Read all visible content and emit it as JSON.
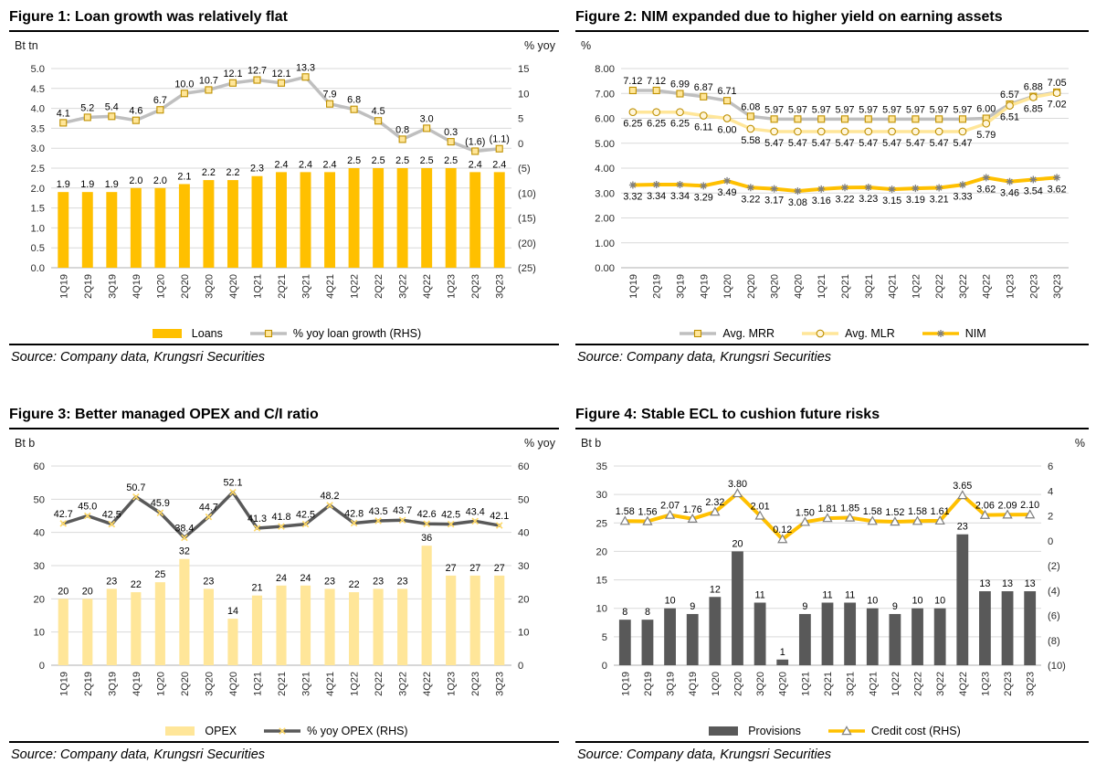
{
  "source_text": "Source: Company data, Krungsri Securities",
  "colors": {
    "gold": "#FFC000",
    "light_yellow": "#FFE699",
    "pale_yellow_fill": "#FFF6DC",
    "gray_line": "#BFBFBF",
    "dark_gray": "#595959",
    "marker_tan": "#BF9000",
    "marker_gray": "#7F7F7F",
    "grid_line": "#D9D9D9",
    "axis_line": "#BFBFBF"
  },
  "chart_data": [
    {
      "type": "bar-line",
      "title": "Figure 1: Loan growth was relatively flat",
      "grid": true,
      "legend_position": "bottom",
      "categories": [
        "1Q19",
        "2Q19",
        "3Q19",
        "4Q19",
        "1Q20",
        "2Q20",
        "3Q20",
        "4Q20",
        "1Q21",
        "2Q21",
        "3Q21",
        "4Q21",
        "1Q22",
        "2Q22",
        "3Q22",
        "4Q22",
        "1Q23",
        "2Q23",
        "3Q23"
      ],
      "left_axis": {
        "unit": "Bt tn",
        "min": 0,
        "max": 5,
        "labels": [
          "5.0",
          "4.5",
          "4.0",
          "3.5",
          "3.0",
          "2.5",
          "2.0",
          "1.5",
          "1.0",
          "0.5",
          "0.0"
        ]
      },
      "right_axis": {
        "unit": "% yoy",
        "min": -25,
        "max": 15,
        "labels": [
          "15",
          "10",
          "5",
          "0",
          "(5)",
          "(10)",
          "(15)",
          "(20)",
          "(25)"
        ]
      },
      "bars": {
        "name": "Loans",
        "axis": "left",
        "color": "#FFC000",
        "values": [
          1.9,
          1.9,
          1.9,
          2.0,
          2.0,
          2.1,
          2.2,
          2.2,
          2.3,
          2.4,
          2.4,
          2.4,
          2.5,
          2.5,
          2.5,
          2.5,
          2.5,
          2.4,
          2.4
        ],
        "labels": [
          "1.9",
          "1.9",
          "1.9",
          "2.0",
          "2.0",
          "2.1",
          "2.2",
          "2.2",
          "2.3",
          "2.4",
          "2.4",
          "2.4",
          "2.5",
          "2.5",
          "2.5",
          "2.5",
          "2.5",
          "2.4",
          "2.4"
        ]
      },
      "lines": [
        {
          "name": "% yoy loan growth (RHS)",
          "axis": "right",
          "color": "#BFBFBF",
          "marker": "square",
          "marker_fill": "#FFE699",
          "marker_stroke": "#BF9000",
          "values": [
            4.1,
            5.2,
            5.4,
            4.6,
            6.7,
            10.0,
            10.7,
            12.1,
            12.7,
            12.1,
            13.3,
            7.9,
            6.8,
            4.5,
            0.8,
            3.0,
            0.3,
            -1.6,
            -1.1
          ],
          "labels": [
            "4.1",
            "5.2",
            "5.4",
            "4.6",
            "6.7",
            "10.0",
            "10.7",
            "12.1",
            "12.7",
            "12.1",
            "13.3",
            "7.9",
            "6.8",
            "4.5",
            "0.8",
            "3.0",
            "0.3",
            "(1.6)",
            "(1.1)"
          ]
        }
      ]
    },
    {
      "type": "line",
      "title": "Figure 2: NIM expanded due to higher yield on earning assets",
      "grid": true,
      "legend_position": "bottom",
      "categories": [
        "1Q19",
        "2Q19",
        "3Q19",
        "4Q19",
        "1Q20",
        "2Q20",
        "3Q20",
        "4Q20",
        "1Q21",
        "2Q21",
        "3Q21",
        "4Q21",
        "1Q22",
        "2Q22",
        "3Q22",
        "4Q22",
        "1Q23",
        "2Q23",
        "3Q23"
      ],
      "left_axis": {
        "unit": "%",
        "min": 0,
        "max": 8,
        "labels": [
          "8.00",
          "7.00",
          "6.00",
          "5.00",
          "4.00",
          "3.00",
          "2.00",
          "1.00",
          "0.00"
        ]
      },
      "right_axis": null,
      "bars": null,
      "lines": [
        {
          "name": "Avg. MRR",
          "axis": "left",
          "color": "#BFBFBF",
          "marker": "square",
          "marker_fill": "#FFE699",
          "marker_stroke": "#BF9000",
          "values": [
            7.12,
            7.12,
            6.99,
            6.87,
            6.71,
            6.08,
            5.97,
            5.97,
            5.97,
            5.97,
            5.97,
            5.97,
            5.97,
            5.97,
            5.97,
            6.0,
            6.57,
            6.88,
            7.05
          ],
          "labels": [
            "7.12",
            "7.12",
            "6.99",
            "6.87",
            "6.71",
            "6.08",
            "5.97",
            "5.97",
            "5.97",
            "5.97",
            "5.97",
            "5.97",
            "5.97",
            "5.97",
            "5.97",
            "6.00",
            "6.57",
            "6.88",
            "7.05"
          ]
        },
        {
          "name": "Avg. MLR",
          "axis": "left",
          "color": "#FFE699",
          "marker": "circle",
          "marker_fill": "#FFF6DC",
          "marker_stroke": "#BF9000",
          "values": [
            6.25,
            6.25,
            6.25,
            6.11,
            6.0,
            5.58,
            5.47,
            5.47,
            5.47,
            5.47,
            5.47,
            5.47,
            5.47,
            5.47,
            5.47,
            5.79,
            6.51,
            6.85,
            7.02
          ],
          "labels": [
            "6.25",
            "6.25",
            "6.25",
            "6.11",
            "6.00",
            "5.58",
            "5.47",
            "5.47",
            "5.47",
            "5.47",
            "5.47",
            "5.47",
            "5.47",
            "5.47",
            "5.47",
            "5.79",
            "6.51",
            "6.85",
            "7.02"
          ]
        },
        {
          "name": "NIM",
          "axis": "left",
          "color": "#FFC000",
          "marker": "asterisk",
          "marker_fill": "none",
          "marker_stroke": "#7F7F7F",
          "values": [
            3.32,
            3.34,
            3.34,
            3.29,
            3.49,
            3.22,
            3.17,
            3.08,
            3.16,
            3.22,
            3.23,
            3.15,
            3.19,
            3.21,
            3.33,
            3.62,
            3.46,
            3.54,
            3.62
          ],
          "labels": [
            "3.32",
            "3.34",
            "3.34",
            "3.29",
            "3.49",
            "3.22",
            "3.17",
            "3.08",
            "3.16",
            "3.22",
            "3.23",
            "3.15",
            "3.19",
            "3.21",
            "3.33",
            "3.62",
            "3.46",
            "3.54",
            "3.62"
          ]
        }
      ]
    },
    {
      "type": "bar-line",
      "title": "Figure 3: Better managed OPEX and C/I ratio",
      "grid": true,
      "legend_position": "bottom",
      "categories": [
        "1Q19",
        "2Q19",
        "3Q19",
        "4Q19",
        "1Q20",
        "2Q20",
        "3Q20",
        "4Q20",
        "1Q21",
        "2Q21",
        "3Q21",
        "4Q21",
        "1Q22",
        "2Q22",
        "3Q22",
        "4Q22",
        "1Q23",
        "2Q23",
        "3Q23"
      ],
      "left_axis": {
        "unit": "Bt b",
        "min": 0,
        "max": 60,
        "labels": [
          "60",
          "50",
          "40",
          "30",
          "20",
          "10",
          "0"
        ]
      },
      "right_axis": {
        "unit": "% yoy",
        "min": 0,
        "max": 60,
        "labels": [
          "60",
          "50",
          "40",
          "30",
          "20",
          "10",
          "0"
        ]
      },
      "bars": {
        "name": "OPEX",
        "axis": "left",
        "color": "#FFE699",
        "values": [
          20,
          20,
          23,
          22,
          25,
          32,
          23,
          14,
          21,
          24,
          24,
          23,
          22,
          23,
          23,
          36,
          27,
          27,
          27
        ],
        "labels": [
          "20",
          "20",
          "23",
          "22",
          "25",
          "32",
          "23",
          "14",
          "21",
          "24",
          "24",
          "23",
          "22",
          "23",
          "23",
          "36",
          "27",
          "27",
          "27"
        ]
      },
      "lines": [
        {
          "name": "% yoy OPEX (RHS)",
          "axis": "right",
          "color": "#595959",
          "marker": "xmark",
          "marker_fill": "none",
          "marker_stroke": "#FFD966",
          "values": [
            42.7,
            45.0,
            42.5,
            50.7,
            45.9,
            38.4,
            44.7,
            52.1,
            41.3,
            41.8,
            42.5,
            48.2,
            42.8,
            43.5,
            43.7,
            42.6,
            42.5,
            43.4,
            42.1
          ],
          "labels": [
            "42.7",
            "45.0",
            "42.5",
            "50.7",
            "45.9",
            "38.4",
            "44.7",
            "52.1",
            "41.3",
            "41.8",
            "42.5",
            "48.2",
            "42.8",
            "43.5",
            "43.7",
            "42.6",
            "42.5",
            "43.4",
            "42.1"
          ]
        }
      ]
    },
    {
      "type": "bar-line",
      "title": "Figure 4: Stable ECL to cushion future risks",
      "grid": true,
      "legend_position": "bottom",
      "categories": [
        "1Q19",
        "2Q19",
        "3Q19",
        "4Q19",
        "1Q20",
        "2Q20",
        "3Q20",
        "4Q20",
        "1Q21",
        "2Q21",
        "3Q21",
        "4Q21",
        "1Q22",
        "2Q22",
        "3Q22",
        "4Q22",
        "1Q23",
        "2Q23",
        "3Q23"
      ],
      "left_axis": {
        "unit": "Bt b",
        "min": 0,
        "max": 35,
        "labels": [
          "35",
          "30",
          "25",
          "20",
          "15",
          "10",
          "5",
          "0"
        ]
      },
      "right_axis": {
        "unit": "%",
        "min": -10,
        "max": 6,
        "labels": [
          "6",
          "4",
          "2",
          "0",
          "(2)",
          "(4)",
          "(6)",
          "(8)",
          "(10)"
        ]
      },
      "bars": {
        "name": "Provisions",
        "axis": "left",
        "color": "#595959",
        "values": [
          8,
          8,
          10,
          9,
          12,
          20,
          11,
          1,
          9,
          11,
          11,
          10,
          9,
          10,
          10,
          23,
          13,
          13,
          13
        ],
        "labels": [
          "8",
          "8",
          "10",
          "9",
          "12",
          "20",
          "11",
          "1",
          "9",
          "11",
          "11",
          "10",
          "9",
          "10",
          "10",
          "23",
          "13",
          "13",
          "13"
        ]
      },
      "lines": [
        {
          "name": "Credit cost (RHS)",
          "axis": "right",
          "color": "#FFC000",
          "marker": "triangle",
          "marker_fill": "#FFFFFF",
          "marker_stroke": "#7F7F7F",
          "values": [
            1.58,
            1.56,
            2.07,
            1.76,
            2.32,
            3.8,
            2.01,
            0.12,
            1.5,
            1.81,
            1.85,
            1.58,
            1.52,
            1.58,
            1.61,
            3.65,
            2.06,
            2.09,
            2.1
          ],
          "labels": [
            "1.58",
            "1.56",
            "2.07",
            "1.76",
            "2.32",
            "3.80",
            "2.01",
            "0.12",
            "1.50",
            "1.81",
            "1.85",
            "1.58",
            "1.52",
            "1.58",
            "1.61",
            "3.65",
            "2.06",
            "2.09",
            "2.10"
          ]
        }
      ]
    }
  ]
}
